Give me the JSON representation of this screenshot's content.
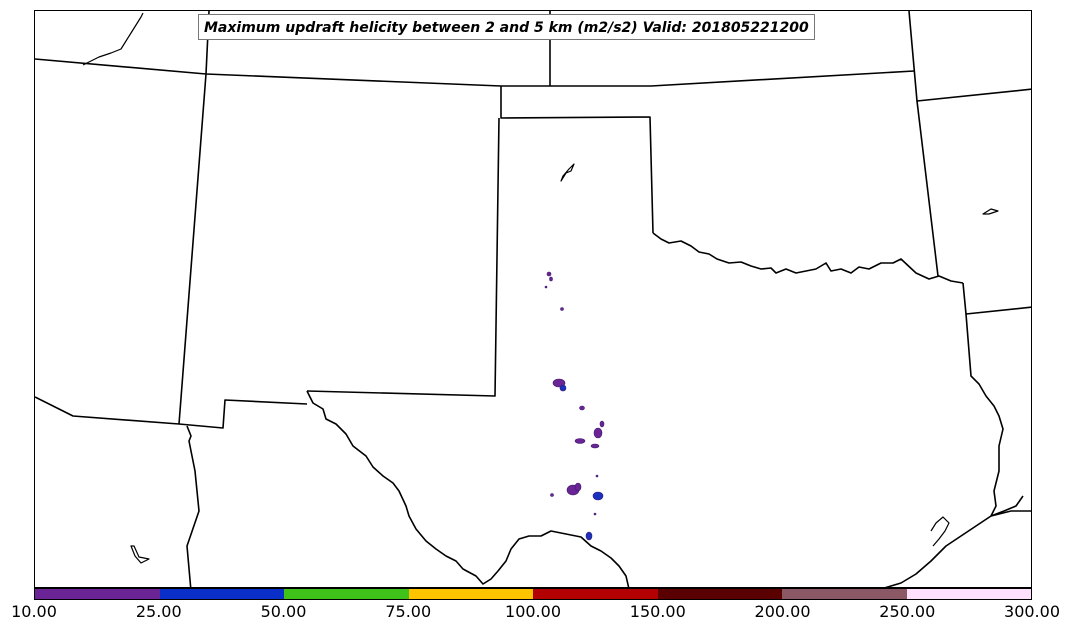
{
  "title": "Maximum updraft helicity between 2 and 5 km (m2/s2) Valid: 201805221200",
  "colorbar": {
    "colors": [
      "#6a2496",
      "#0a2fc8",
      "#3fc21a",
      "#ffc400",
      "#b30000",
      "#5a0000",
      "#8b5866",
      "#ffe1ff"
    ],
    "labels": [
      "10.00",
      "25.00",
      "50.00",
      "75.00",
      "100.00",
      "150.00",
      "200.00",
      "250.00",
      "300.00"
    ]
  },
  "features": {
    "blob_colors": {
      "purple": "#6a2496",
      "blue": "#1a30c0"
    }
  }
}
